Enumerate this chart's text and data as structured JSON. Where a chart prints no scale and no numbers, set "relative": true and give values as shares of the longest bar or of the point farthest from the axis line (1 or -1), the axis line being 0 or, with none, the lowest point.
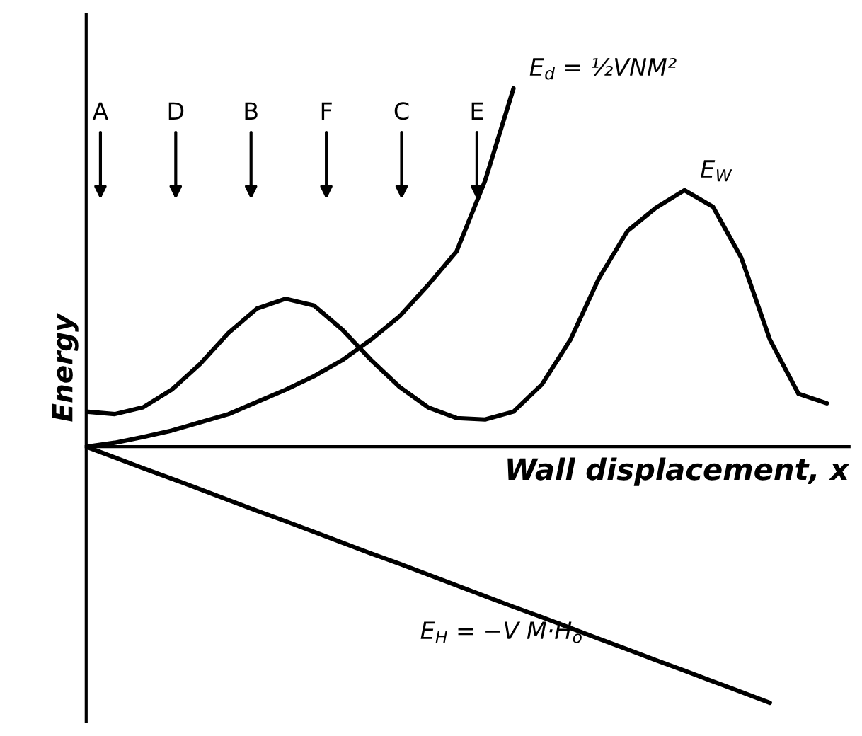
{
  "chart_data": {
    "type": "line",
    "relative": true,
    "xlabel": "Wall displacement, x",
    "ylabel": "Energy",
    "legend": false,
    "marker": "none",
    "line_style": "solid",
    "categories": [
      null,
      null,
      null,
      null,
      null,
      null,
      null,
      null,
      null,
      null,
      null,
      null,
      null,
      null,
      null,
      null,
      null,
      null,
      null,
      null,
      null,
      null,
      null,
      null,
      null,
      null,
      null
    ],
    "series": [
      {
        "name": "E$_{W}$",
        "color": "#000000",
        "values": [
          0.098,
          0.091,
          0.11,
          0.159,
          0.231,
          0.318,
          0.386,
          0.413,
          0.394,
          0.326,
          0.242,
          0.167,
          0.11,
          0.08,
          0.076,
          0.098,
          0.174,
          0.299,
          0.47,
          0.602,
          0.667,
          0.716,
          0.67,
          0.527,
          0.299,
          0.148,
          0.121
        ]
      },
      {
        "name": "E$_{d}$ = ½VNM²",
        "color": "#000000",
        "values": [
          0,
          0.011,
          0.027,
          0.045,
          0.068,
          0.091,
          0.125,
          0.159,
          0.197,
          0.242,
          0.299,
          0.364,
          0.451,
          0.545,
          0.742,
          1,
          null,
          null,
          null,
          null,
          null,
          null,
          null,
          null,
          null,
          null,
          null
        ]
      },
      {
        "name": "E$_{H}$ = −V M·H$_{o}$",
        "color": "#000000",
        "values": [
          0,
          -0.03,
          -0.06,
          -0.089,
          -0.119,
          -0.149,
          -0.179,
          -0.208,
          -0.238,
          -0.268,
          -0.298,
          -0.327,
          -0.357,
          -0.387,
          -0.417,
          -0.447,
          -0.476,
          -0.506,
          -0.536,
          -0.566,
          -0.596,
          -0.625,
          -0.655,
          -0.685,
          -0.715,
          null,
          null
        ]
      }
    ],
    "annotations": [
      "A",
      "D",
      "B",
      "F",
      "C",
      "E"
    ]
  }
}
